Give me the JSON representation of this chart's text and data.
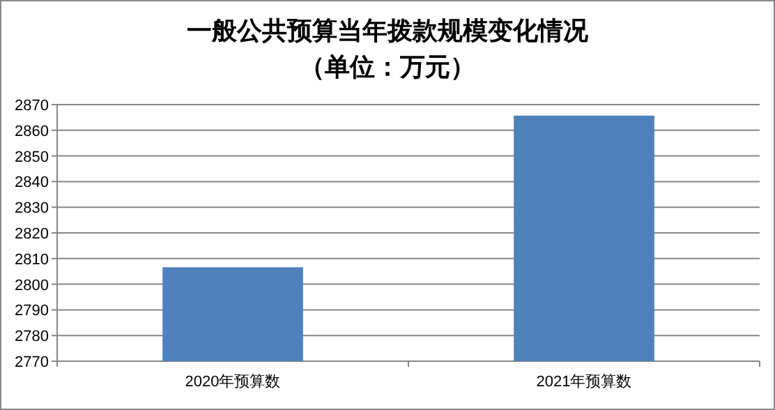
{
  "chart_data": {
    "type": "bar",
    "title": "一般公共预算当年拨款规模变化情况",
    "subtitle": "（单位：万元）",
    "categories": [
      "2020年预算数",
      "2021年预算数"
    ],
    "values": [
      2806.6,
      2865.7
    ],
    "color": "#4f81bd",
    "ylim": [
      2770,
      2870
    ],
    "yticks": [
      2770,
      2780,
      2790,
      2800,
      2810,
      2820,
      2830,
      2840,
      2850,
      2860,
      2870
    ],
    "grid": "y"
  }
}
